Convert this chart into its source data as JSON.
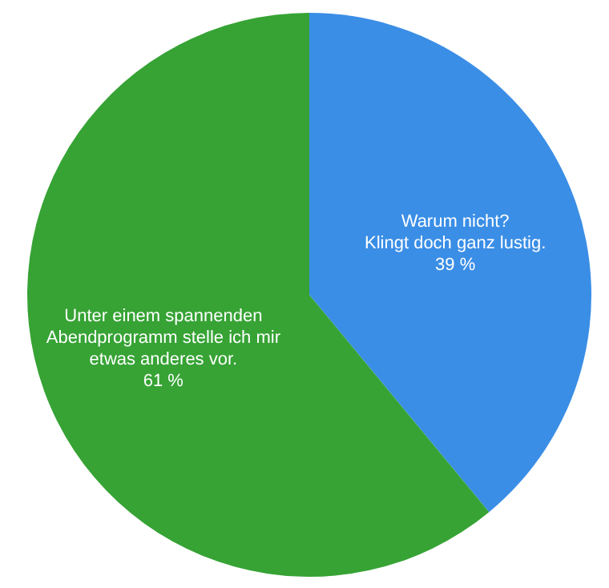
{
  "chart_data": {
    "type": "pie",
    "categories": [
      "Warum nicht?\nKlingt doch ganz lustig.",
      "Unter einem spannenden\nAbendprogramm stelle ich mir\netwas anderes vor."
    ],
    "values": [
      39,
      61
    ],
    "colors": [
      "#3a8ee6",
      "#36a334"
    ],
    "value_labels": [
      "39 %",
      "61 %"
    ]
  }
}
